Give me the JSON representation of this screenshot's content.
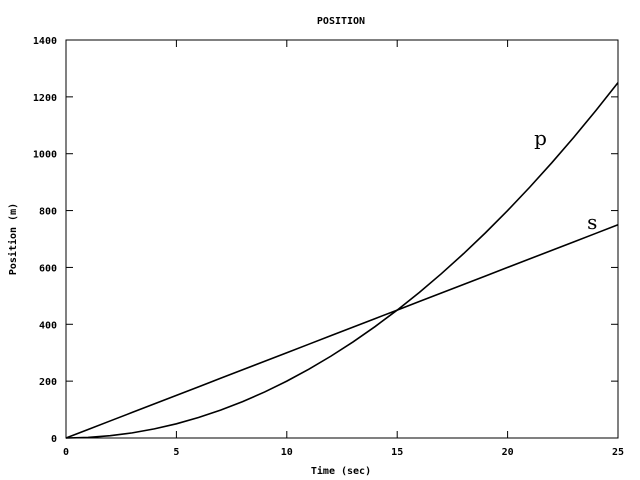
{
  "chart_data": {
    "type": "line",
    "title": "POSITION",
    "xlabel": "Time (sec)",
    "ylabel": "Position (m)",
    "xlim": [
      0,
      25
    ],
    "ylim": [
      0,
      1400
    ],
    "xticks": [
      "0",
      "5",
      "10",
      "15",
      "20",
      "25"
    ],
    "yticks": [
      "0",
      "200",
      "400",
      "600",
      "800",
      "1000",
      "1200",
      "1400"
    ],
    "grid": false,
    "legend": "none",
    "x": [
      0,
      1,
      2,
      3,
      4,
      5,
      6,
      7,
      8,
      9,
      10,
      11,
      12,
      13,
      14,
      15,
      16,
      17,
      18,
      19,
      20,
      21,
      22,
      23,
      24,
      25
    ],
    "series": [
      {
        "name": "p",
        "values": [
          0,
          2,
          8,
          18,
          32,
          50,
          72,
          98,
          128,
          162,
          200,
          242,
          288,
          338,
          392,
          450,
          512,
          578,
          648,
          722,
          800,
          882,
          968,
          1058,
          1152,
          1250
        ]
      },
      {
        "name": "s",
        "values": [
          0,
          30,
          60,
          90,
          120,
          150,
          180,
          210,
          240,
          270,
          300,
          330,
          360,
          390,
          420,
          450,
          480,
          510,
          540,
          570,
          600,
          630,
          660,
          690,
          720,
          750
        ]
      }
    ],
    "line_color": "#000000"
  }
}
